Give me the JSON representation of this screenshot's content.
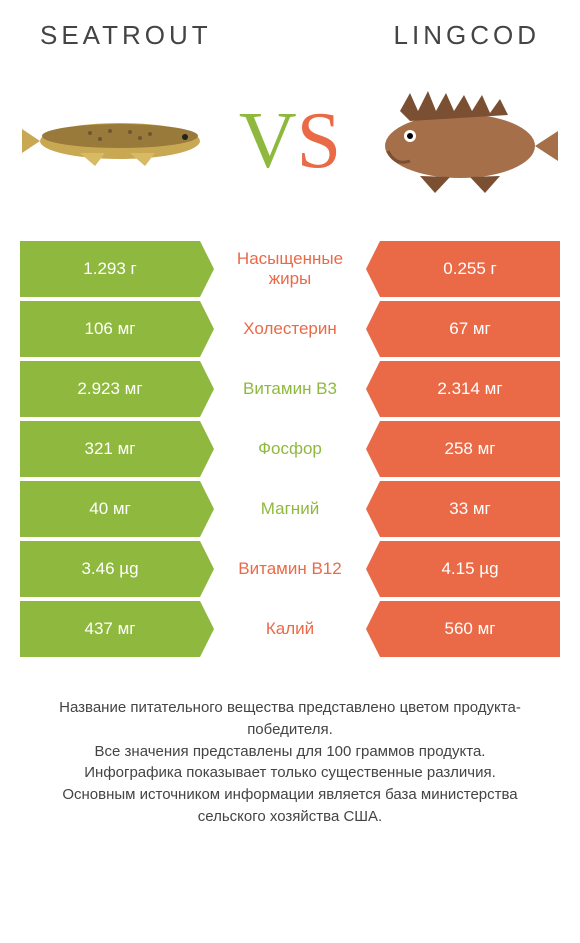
{
  "header": {
    "left_title": "Seatrout",
    "right_title": "Lingcod"
  },
  "vs": {
    "v": "V",
    "s": "S"
  },
  "colors": {
    "left": "#8fb93e",
    "right": "#ea6a47",
    "text": "#444444",
    "bg": "#ffffff"
  },
  "nutrients": [
    {
      "label": "Насыщенные жиры",
      "left": "1.293 г",
      "right": "0.255 г",
      "winner": "orange"
    },
    {
      "label": "Холестерин",
      "left": "106 мг",
      "right": "67 мг",
      "winner": "orange"
    },
    {
      "label": "Витамин B3",
      "left": "2.923 мг",
      "right": "2.314 мг",
      "winner": "green"
    },
    {
      "label": "Фосфор",
      "left": "321 мг",
      "right": "258 мг",
      "winner": "green"
    },
    {
      "label": "Магний",
      "left": "40 мг",
      "right": "33 мг",
      "winner": "green"
    },
    {
      "label": "Витамин B12",
      "left": "3.46 µg",
      "right": "4.15 µg",
      "winner": "orange"
    },
    {
      "label": "Калий",
      "left": "437 мг",
      "right": "560 мг",
      "winner": "orange"
    }
  ],
  "footer": {
    "line1": "Название питательного вещества представлено цветом продукта-победителя.",
    "line2": "Все значения представлены для 100 граммов продукта.",
    "line3": "Инфографика показывает только существенные различия.",
    "line4": "Основным источником информации является база министерства сельского хозяйства США."
  },
  "fish_images": {
    "left": {
      "name": "seatrout-image",
      "body_color": "#c9a854",
      "spot_color": "#6b5730"
    },
    "right": {
      "name": "lingcod-image",
      "body_color": "#a56f4a",
      "fin_color": "#7a4f32"
    }
  }
}
